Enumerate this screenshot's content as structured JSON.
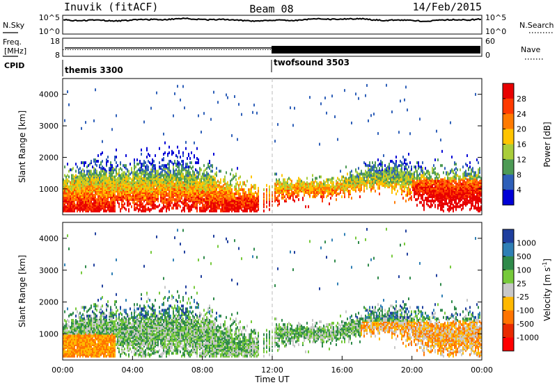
{
  "header": {
    "station": "Inuvik (fitACF)",
    "beam": "Beam 08",
    "date": "14/Feb/2015"
  },
  "status_panels": {
    "nsky": {
      "label": "N.Sky",
      "right_label": "N.Search",
      "ticks_left": [
        "10^5",
        "10^0"
      ],
      "ticks_right": [
        "10^5",
        "10^0"
      ]
    },
    "freq": {
      "label_line1": "Freq.",
      "label_line2": "[MHz]",
      "right_label": "Nave",
      "ticks_left": [
        "18",
        "8"
      ],
      "ticks_right": [
        "60",
        "0"
      ]
    },
    "cpid": {
      "label": "CPID",
      "programs": [
        "themis 3300",
        "twofsound 3503"
      ]
    }
  },
  "colorbars": {
    "power": {
      "title": "Power [dB]",
      "ticks": [
        "28",
        "24",
        "20",
        "16",
        "12",
        "8",
        "4"
      ],
      "colors": [
        "#e80000",
        "#ff3a00",
        "#ff7a00",
        "#ffc400",
        "#a9cd3a",
        "#4d9a55",
        "#2e5fb8",
        "#0000d6"
      ]
    },
    "velocity": {
      "title": "Velocity [m s",
      "title_sup": "-1",
      "title_end": "]",
      "ticks": [
        "1000",
        "500",
        "100",
        "25",
        "-25",
        "-100",
        "-500",
        "-1000"
      ],
      "colors": [
        "#1f3f9e",
        "#2f7fb5",
        "#2f8a4a",
        "#76c93a",
        "#c8c8c8",
        "#ffb800",
        "#ff7400",
        "#e82a00",
        "#ff0000"
      ]
    }
  },
  "chart_data": [
    {
      "type": "heatmap",
      "name": "power",
      "ylabel": "Slant Range [km]",
      "y_ticks": [
        "4000",
        "3000",
        "2000",
        "1000"
      ],
      "ylim": [
        180,
        4500
      ],
      "xlim": [
        0,
        24
      ],
      "split_time": 12,
      "description_free": true
    },
    {
      "type": "heatmap",
      "name": "velocity",
      "ylabel": "Slant Range [km]",
      "y_ticks": [
        "4000",
        "3000",
        "2000",
        "1000"
      ],
      "ylim": [
        180,
        4500
      ],
      "xlim": [
        0,
        24
      ],
      "x_ticks": [
        "00:00",
        "04:00",
        "08:00",
        "12:00",
        "16:00",
        "20:00",
        "00:00"
      ],
      "xlabel": "Time UT"
    }
  ]
}
